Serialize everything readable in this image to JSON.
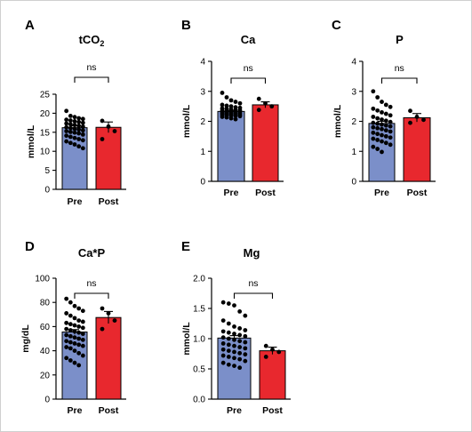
{
  "chart_data": [
    {
      "letter": "A",
      "type": "bar",
      "title_main": "tCO",
      "title_sub": "2",
      "ylabel": "mmol/L",
      "ylim": [
        0,
        25
      ],
      "yticks": [
        0,
        5,
        10,
        15,
        20,
        25
      ],
      "categories": [
        "Pre",
        "Post"
      ],
      "values": [
        16.2,
        16.3
      ],
      "errors": [
        0.5,
        1.4
      ],
      "colors": [
        "#7b8fc9",
        "#e8282e"
      ],
      "annotation": "ns",
      "points": [
        [
          20.6,
          19.3,
          19.0,
          18.7,
          18.5,
          18.3,
          18.1,
          17.9,
          17.7,
          17.5,
          17.3,
          17.1,
          16.9,
          16.7,
          16.5,
          16.3,
          16.1,
          15.9,
          15.7,
          15.5,
          15.3,
          15.1,
          14.9,
          14.7,
          14.4,
          14.1,
          13.8,
          13.5,
          13.2,
          12.9,
          12.6,
          12.2,
          11.8,
          11.3,
          10.8
        ],
        [
          18.0,
          16.5,
          15.3,
          13.2
        ]
      ]
    },
    {
      "letter": "B",
      "type": "bar",
      "title_main": "Ca",
      "title_sub": "",
      "ylabel": "mmol/L",
      "ylim": [
        0,
        4
      ],
      "yticks": [
        0,
        1,
        2,
        3,
        4
      ],
      "categories": [
        "Pre",
        "Post"
      ],
      "values": [
        2.33,
        2.55
      ],
      "errors": [
        0.03,
        0.1
      ],
      "colors": [
        "#7b8fc9",
        "#e8282e"
      ],
      "annotation": "ns",
      "points": [
        [
          2.95,
          2.8,
          2.7,
          2.65,
          2.6,
          2.55,
          2.52,
          2.5,
          2.47,
          2.45,
          2.43,
          2.42,
          2.4,
          2.38,
          2.37,
          2.36,
          2.35,
          2.34,
          2.33,
          2.32,
          2.31,
          2.3,
          2.29,
          2.28,
          2.27,
          2.26,
          2.25,
          2.24,
          2.23,
          2.22,
          2.21,
          2.2,
          2.19,
          2.18,
          2.17,
          2.15,
          2.13,
          2.1,
          2.07
        ],
        [
          2.75,
          2.6,
          2.5,
          2.38
        ]
      ]
    },
    {
      "letter": "C",
      "type": "bar",
      "title_main": "P",
      "title_sub": "",
      "ylabel": "mmol/L",
      "ylim": [
        0,
        4
      ],
      "yticks": [
        0,
        1,
        2,
        3,
        4
      ],
      "categories": [
        "Pre",
        "Post"
      ],
      "values": [
        1.93,
        2.12
      ],
      "errors": [
        0.07,
        0.14
      ],
      "colors": [
        "#7b8fc9",
        "#e8282e"
      ],
      "annotation": "ns",
      "points": [
        [
          3.0,
          2.8,
          2.65,
          2.55,
          2.48,
          2.42,
          2.36,
          2.3,
          2.25,
          2.2,
          2.15,
          2.1,
          2.06,
          2.02,
          1.98,
          1.95,
          1.92,
          1.89,
          1.86,
          1.83,
          1.8,
          1.77,
          1.74,
          1.7,
          1.66,
          1.62,
          1.58,
          1.54,
          1.5,
          1.46,
          1.42,
          1.38,
          1.33,
          1.28,
          1.22,
          1.15,
          1.08,
          0.98
        ],
        [
          2.35,
          2.15,
          2.05,
          1.95
        ]
      ]
    },
    {
      "letter": "D",
      "type": "bar",
      "title_main": "Ca*P",
      "title_sub": "",
      "ylabel": "mg/dL",
      "ylim": [
        0,
        100
      ],
      "yticks": [
        0,
        20,
        40,
        60,
        80,
        100
      ],
      "categories": [
        "Pre",
        "Post"
      ],
      "values": [
        55.5,
        67.5
      ],
      "errors": [
        2.0,
        5.0
      ],
      "colors": [
        "#7b8fc9",
        "#e8282e"
      ],
      "annotation": "ns",
      "points": [
        [
          83,
          80,
          77,
          75,
          73,
          71,
          69,
          67,
          65,
          64,
          63,
          62,
          61,
          60,
          59,
          58,
          57,
          56,
          55,
          54,
          53,
          52,
          51,
          50,
          49,
          48,
          47,
          46,
          45,
          44,
          43,
          42,
          40,
          38,
          36,
          34,
          32,
          30,
          28
        ],
        [
          75,
          71,
          65,
          58
        ]
      ]
    },
    {
      "letter": "E",
      "type": "bar",
      "title_main": "Mg",
      "title_sub": "",
      "ylabel": "mmol/L",
      "ylim": [
        0,
        2.0
      ],
      "yticks": [
        0.0,
        0.5,
        1.0,
        1.5,
        2.0
      ],
      "categories": [
        "Pre",
        "Post"
      ],
      "values": [
        1.01,
        0.8
      ],
      "errors": [
        0.04,
        0.06
      ],
      "colors": [
        "#7b8fc9",
        "#e8282e"
      ],
      "annotation": "ns",
      "points": [
        [
          1.6,
          1.58,
          1.55,
          1.45,
          1.38,
          1.3,
          1.25,
          1.2,
          1.17,
          1.14,
          1.12,
          1.1,
          1.08,
          1.06,
          1.04,
          1.02,
          1.0,
          0.98,
          0.96,
          0.94,
          0.92,
          0.9,
          0.88,
          0.86,
          0.84,
          0.82,
          0.8,
          0.78,
          0.76,
          0.74,
          0.72,
          0.7,
          0.68,
          0.66,
          0.63,
          0.6,
          0.57,
          0.55,
          0.52
        ],
        [
          0.88,
          0.82,
          0.78,
          0.7
        ]
      ]
    }
  ]
}
